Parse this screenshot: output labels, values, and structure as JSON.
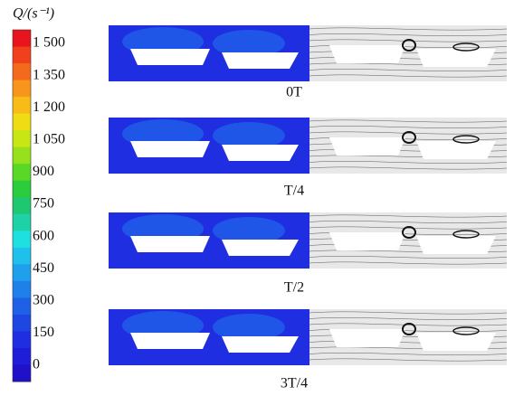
{
  "colorbar": {
    "title": "Q/(s⁻¹)",
    "labels": [
      "1 500",
      "1 350",
      "1 200",
      "1 050",
      "900",
      "750",
      "600",
      "450",
      "300",
      "150",
      "0"
    ]
  },
  "panels": [
    {
      "caption": "0T"
    },
    {
      "caption": "T/4"
    },
    {
      "caption": "T/2"
    },
    {
      "caption": "3T/4"
    }
  ]
}
